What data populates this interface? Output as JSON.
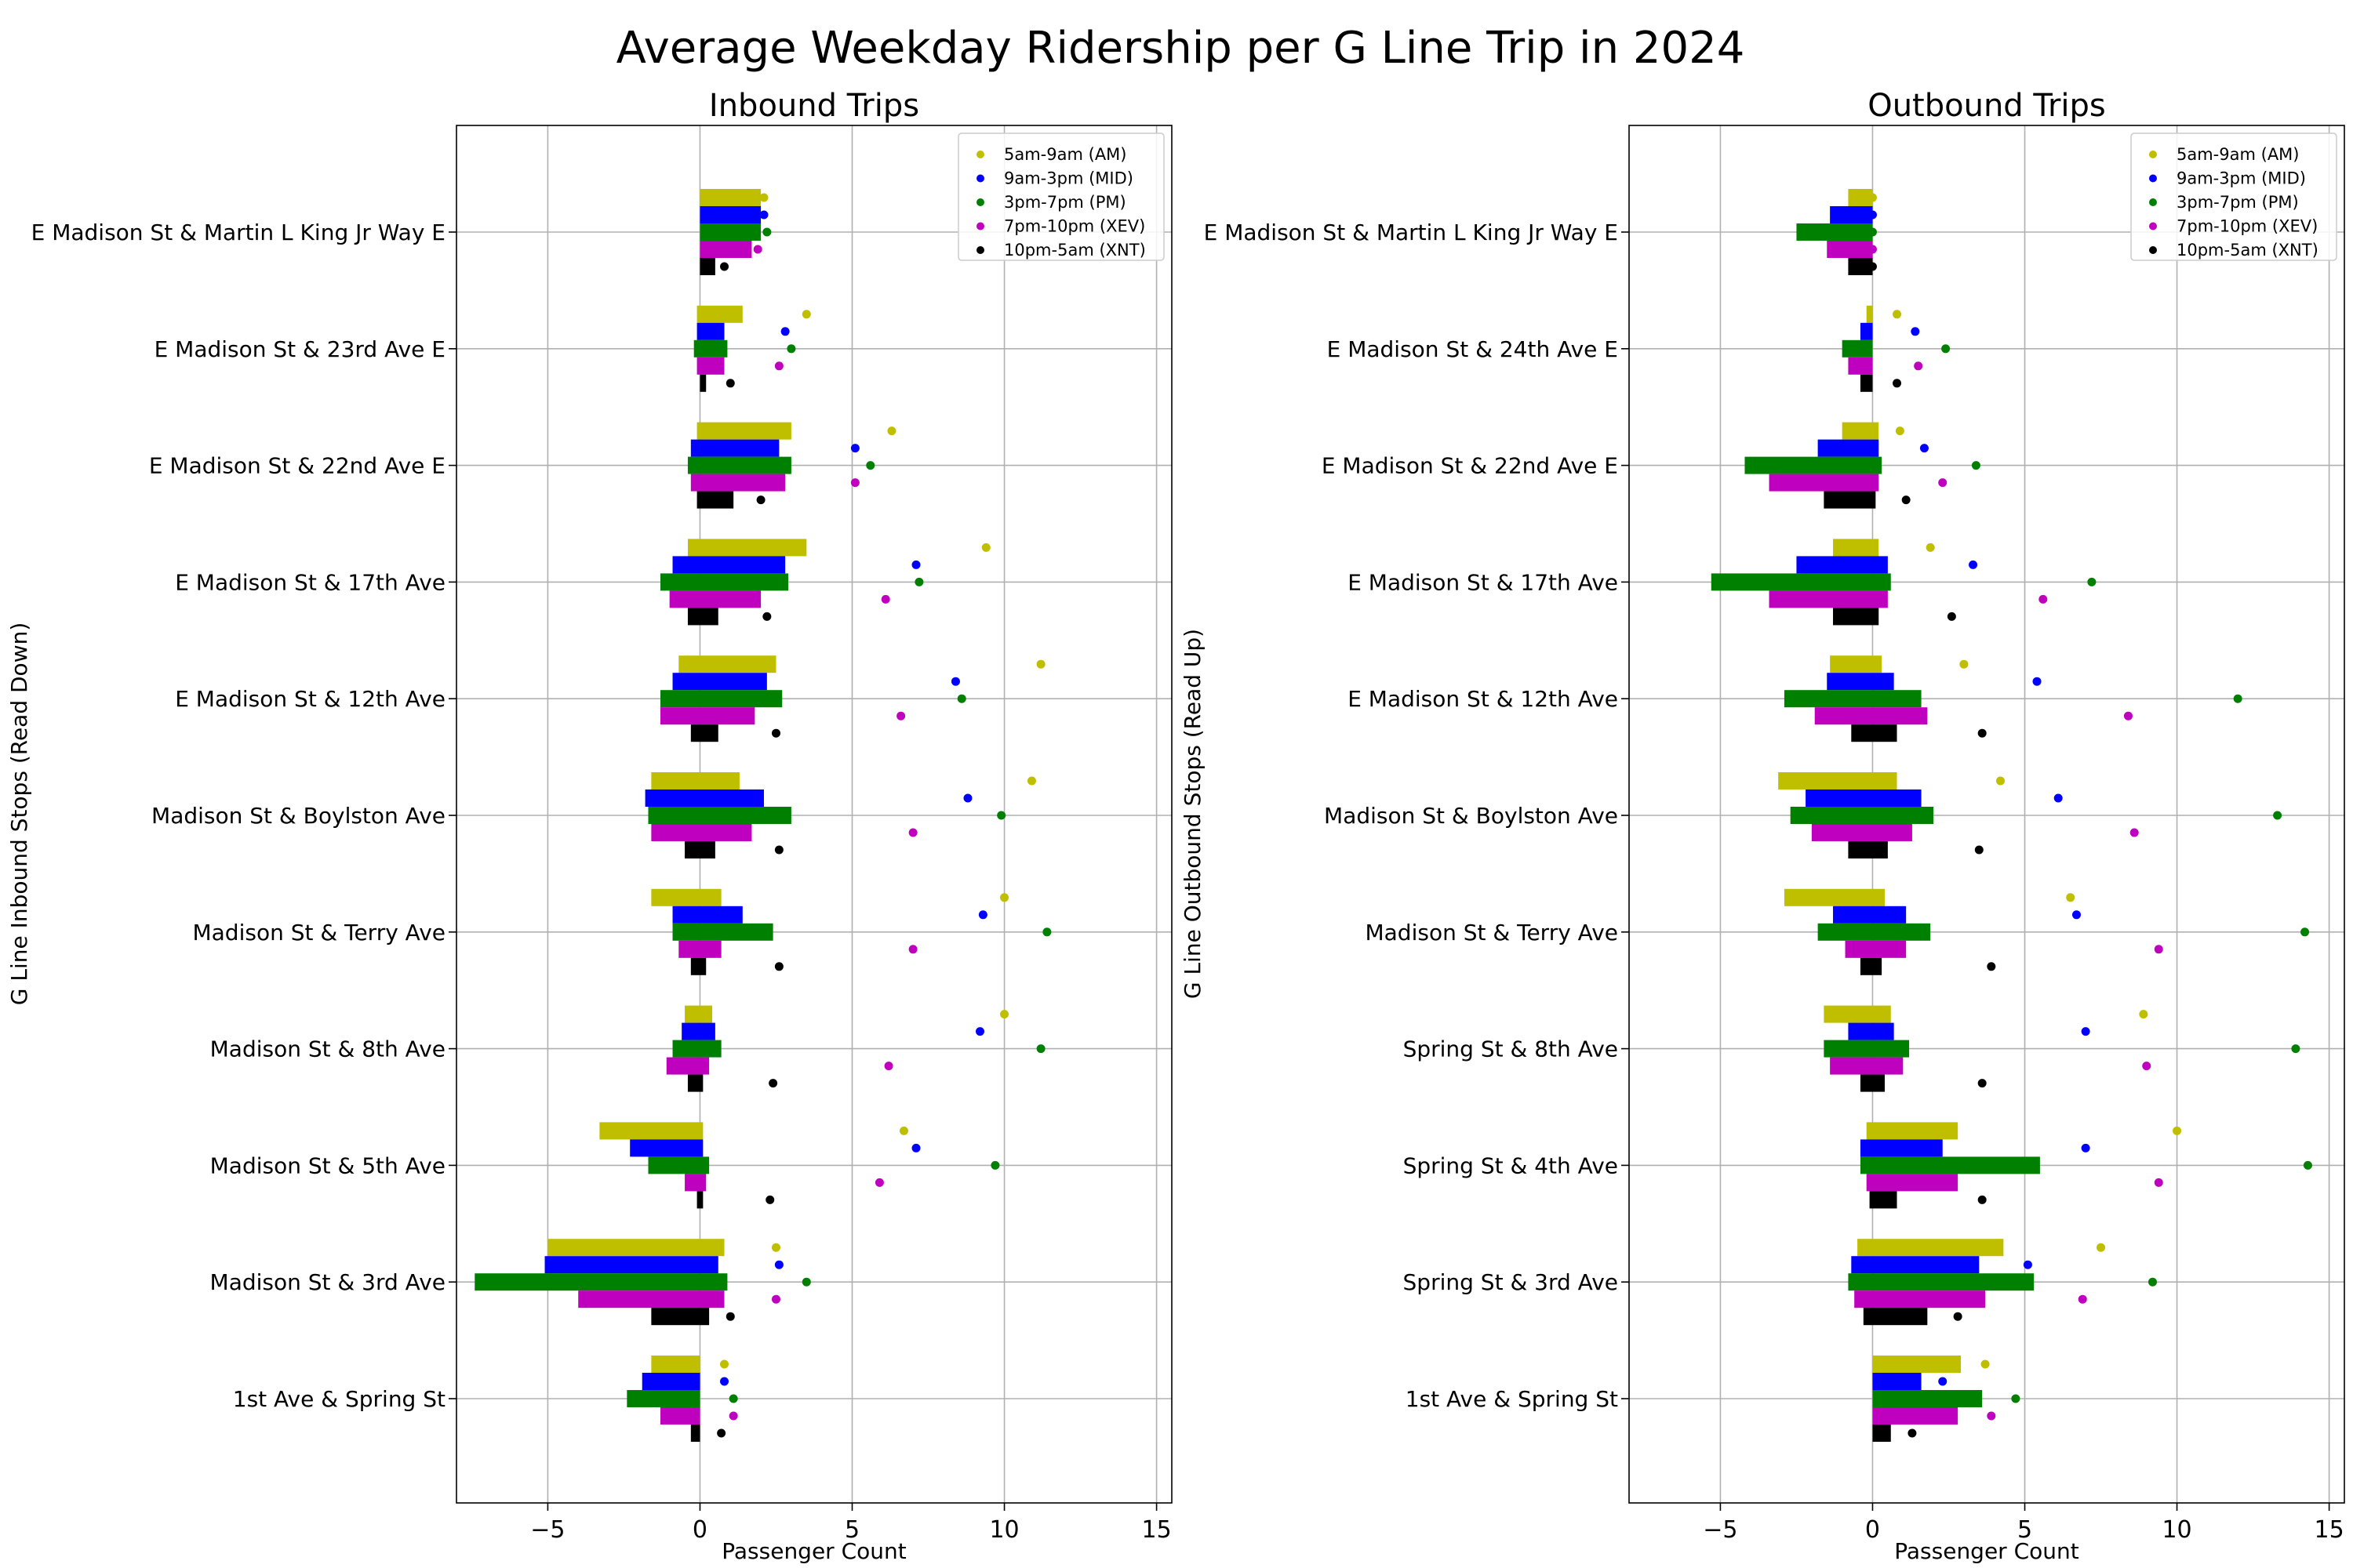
{
  "title": "Average Weekday Ridership per G Line Trip in 2024",
  "chart_data": [
    {
      "type": "bar",
      "title": "Inbound Trips",
      "xlabel": "Passenger Count",
      "ylabel": "G Line Inbound Stops (Read Down)",
      "xlim": [
        -8,
        15.5
      ],
      "xticks": [
        -5,
        0,
        5,
        10,
        15
      ],
      "xtick_labels": [
        "−5",
        "0",
        "5",
        "10",
        "15"
      ],
      "grid": true,
      "legend_position": "top-right",
      "categories": [
        "E Madison St & Martin L King Jr Way E",
        "E Madison St & 23rd Ave E",
        "E Madison St & 22nd Ave E",
        "E Madison St & 17th Ave",
        "E Madison St & 12th Ave",
        "Madison St & Boylston Ave",
        "Madison St & Terry Ave",
        "Madison St & 8th Ave",
        "Madison St & 5th Ave",
        "Madison St & 3rd Ave",
        "1st Ave & Spring St"
      ],
      "series": [
        {
          "name": "5am-9am (AM)",
          "color": "#bfbf00",
          "bars": [
            [
              0,
              2.0
            ],
            [
              -0.1,
              1.4
            ],
            [
              -0.1,
              3.0
            ],
            [
              -0.4,
              3.5
            ],
            [
              -0.7,
              2.5
            ],
            [
              -1.6,
              1.3
            ],
            [
              -1.6,
              0.7
            ],
            [
              -0.5,
              0.4
            ],
            [
              -3.3,
              0.1
            ],
            [
              -5.0,
              0.8
            ],
            [
              -1.6,
              0
            ]
          ],
          "points": [
            2.1,
            3.5,
            6.3,
            9.4,
            11.2,
            10.9,
            10.0,
            10.0,
            6.7,
            2.5,
            0.8
          ]
        },
        {
          "name": "9am-3pm (MID)",
          "color": "#0000ff",
          "bars": [
            [
              0,
              2.0
            ],
            [
              -0.1,
              0.8
            ],
            [
              -0.3,
              2.6
            ],
            [
              -0.9,
              2.8
            ],
            [
              -0.9,
              2.2
            ],
            [
              -1.8,
              2.1
            ],
            [
              -0.9,
              1.4
            ],
            [
              -0.6,
              0.5
            ],
            [
              -2.3,
              0.1
            ],
            [
              -5.1,
              0.6
            ],
            [
              -1.9,
              0
            ]
          ],
          "points": [
            2.1,
            2.8,
            5.1,
            7.1,
            8.4,
            8.8,
            9.3,
            9.2,
            7.1,
            2.6,
            0.8
          ]
        },
        {
          "name": "3pm-7pm (PM)",
          "color": "#008000",
          "bars": [
            [
              0,
              2.0
            ],
            [
              -0.2,
              0.9
            ],
            [
              -0.4,
              3.0
            ],
            [
              -1.3,
              2.9
            ],
            [
              -1.3,
              2.7
            ],
            [
              -1.7,
              3.0
            ],
            [
              -0.9,
              2.4
            ],
            [
              -0.9,
              0.7
            ],
            [
              -1.7,
              0.3
            ],
            [
              -7.4,
              0.9
            ],
            [
              -2.4,
              0
            ]
          ],
          "points": [
            2.2,
            3.0,
            5.6,
            7.2,
            8.6,
            9.9,
            11.4,
            11.2,
            9.7,
            3.5,
            1.1
          ]
        },
        {
          "name": "7pm-10pm (XEV)",
          "color": "#bf00bf",
          "bars": [
            [
              0,
              1.7
            ],
            [
              -0.1,
              0.8
            ],
            [
              -0.3,
              2.8
            ],
            [
              -1.0,
              2.0
            ],
            [
              -1.3,
              1.8
            ],
            [
              -1.6,
              1.7
            ],
            [
              -0.7,
              0.7
            ],
            [
              -1.1,
              0.3
            ],
            [
              -0.5,
              0.2
            ],
            [
              -4.0,
              0.8
            ],
            [
              -1.3,
              0
            ]
          ],
          "points": [
            1.9,
            2.6,
            5.1,
            6.1,
            6.6,
            7.0,
            7.0,
            6.2,
            5.9,
            2.5,
            1.1
          ]
        },
        {
          "name": "10pm-5am (XNT)",
          "color": "#000000",
          "bars": [
            [
              0,
              0.5
            ],
            [
              0,
              0.2
            ],
            [
              -0.1,
              1.1
            ],
            [
              -0.4,
              0.6
            ],
            [
              -0.3,
              0.6
            ],
            [
              -0.5,
              0.5
            ],
            [
              -0.3,
              0.2
            ],
            [
              -0.4,
              0.1
            ],
            [
              -0.1,
              0.1
            ],
            [
              -1.6,
              0.3
            ],
            [
              -0.3,
              0
            ]
          ],
          "points": [
            0.8,
            1.0,
            2.0,
            2.2,
            2.5,
            2.6,
            2.6,
            2.4,
            2.3,
            1.0,
            0.7
          ]
        }
      ]
    },
    {
      "type": "bar",
      "title": "Outbound Trips",
      "xlabel": "Passenger Count",
      "ylabel": "G Line Outbound Stops (Read Up)",
      "xlim": [
        -8,
        15.5
      ],
      "xticks": [
        -5,
        0,
        5,
        10,
        15
      ],
      "xtick_labels": [
        "−5",
        "0",
        "5",
        "10",
        "15"
      ],
      "grid": true,
      "legend_position": "top-right",
      "categories": [
        "E Madison St & Martin L King Jr Way E",
        "E Madison St & 24th Ave E",
        "E Madison St & 22nd Ave E",
        "E Madison St & 17th Ave",
        "E Madison St & 12th Ave",
        "Madison St & Boylston Ave",
        "Madison St & Terry Ave",
        "Spring St & 8th Ave",
        "Spring St & 4th Ave",
        "Spring St & 3rd Ave",
        "1st Ave & Spring St"
      ],
      "series": [
        {
          "name": "5am-9am (AM)",
          "color": "#bfbf00",
          "bars": [
            [
              -0.8,
              0
            ],
            [
              -0.2,
              0
            ],
            [
              -1.0,
              0.2
            ],
            [
              -1.3,
              0.2
            ],
            [
              -1.4,
              0.3
            ],
            [
              -3.1,
              0.8
            ],
            [
              -2.9,
              0.4
            ],
            [
              -1.6,
              0.6
            ],
            [
              -0.2,
              2.8
            ],
            [
              -0.5,
              4.3
            ],
            [
              0,
              2.9
            ]
          ],
          "points": [
            0,
            0.8,
            0.9,
            1.9,
            3.0,
            4.2,
            6.5,
            8.9,
            10.0,
            7.5,
            3.7
          ]
        },
        {
          "name": "9am-3pm (MID)",
          "color": "#0000ff",
          "bars": [
            [
              -1.4,
              0
            ],
            [
              -0.4,
              0
            ],
            [
              -1.8,
              0.2
            ],
            [
              -2.5,
              0.5
            ],
            [
              -1.5,
              0.7
            ],
            [
              -2.2,
              1.6
            ],
            [
              -1.3,
              1.1
            ],
            [
              -0.8,
              0.7
            ],
            [
              -0.4,
              2.3
            ],
            [
              -0.7,
              3.5
            ],
            [
              0,
              1.6
            ]
          ],
          "points": [
            0,
            1.4,
            1.7,
            3.3,
            5.4,
            6.1,
            6.7,
            7.0,
            7.0,
            5.1,
            2.3
          ]
        },
        {
          "name": "3pm-7pm (PM)",
          "color": "#008000",
          "bars": [
            [
              -2.5,
              0
            ],
            [
              -1.0,
              0
            ],
            [
              -4.2,
              0.3
            ],
            [
              -5.3,
              0.6
            ],
            [
              -2.9,
              1.6
            ],
            [
              -2.7,
              2.0
            ],
            [
              -1.8,
              1.9
            ],
            [
              -1.6,
              1.2
            ],
            [
              -0.4,
              5.5
            ],
            [
              -0.8,
              5.3
            ],
            [
              0,
              3.6
            ]
          ],
          "points": [
            0,
            2.4,
            3.4,
            7.2,
            12.0,
            13.3,
            14.2,
            13.9,
            14.3,
            9.2,
            4.7
          ]
        },
        {
          "name": "7pm-10pm (XEV)",
          "color": "#bf00bf",
          "bars": [
            [
              -1.5,
              0
            ],
            [
              -0.8,
              0
            ],
            [
              -3.4,
              0.2
            ],
            [
              -3.4,
              0.5
            ],
            [
              -1.9,
              1.8
            ],
            [
              -2.0,
              1.3
            ],
            [
              -0.9,
              1.1
            ],
            [
              -1.4,
              1.0
            ],
            [
              -0.2,
              2.8
            ],
            [
              -0.6,
              3.7
            ],
            [
              0,
              2.8
            ]
          ],
          "points": [
            0,
            1.5,
            2.3,
            5.6,
            8.4,
            8.6,
            9.4,
            9.0,
            9.4,
            6.9,
            3.9
          ]
        },
        {
          "name": "10pm-5am (XNT)",
          "color": "#000000",
          "bars": [
            [
              -0.8,
              0
            ],
            [
              -0.4,
              0
            ],
            [
              -1.6,
              0.1
            ],
            [
              -1.3,
              0.2
            ],
            [
              -0.7,
              0.8
            ],
            [
              -0.8,
              0.5
            ],
            [
              -0.4,
              0.3
            ],
            [
              -0.4,
              0.4
            ],
            [
              -0.1,
              0.8
            ],
            [
              -0.3,
              1.8
            ],
            [
              0,
              0.6
            ]
          ],
          "points": [
            0,
            0.8,
            1.1,
            2.6,
            3.6,
            3.5,
            3.9,
            3.6,
            3.6,
            2.8,
            1.3
          ]
        }
      ]
    }
  ]
}
